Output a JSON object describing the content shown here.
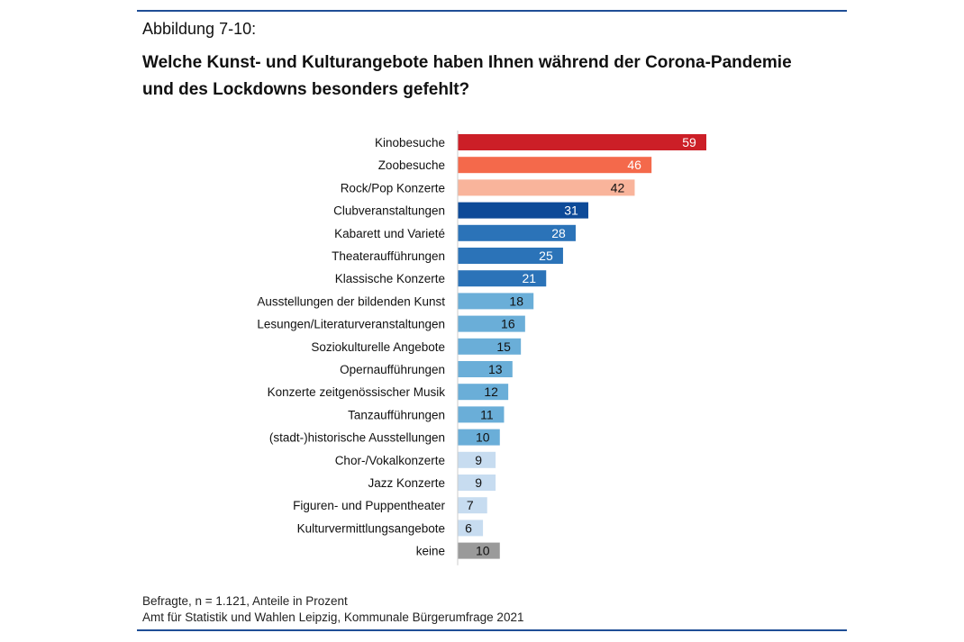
{
  "figure_label": "Abbildung 7-10:",
  "title_line1": "Welche Kunst- und Kulturangebote haben Ihnen während der Corona-Pandemie",
  "title_line2": "und des Lockdowns besonders gefehlt?",
  "footnote": "Befragte, n = 1.121, Anteile in Prozent",
  "source": "Amt für Statistik und Wahlen Leipzig, Kommunale Bürgerumfrage 2021",
  "chart_data": {
    "type": "bar",
    "orientation": "horizontal",
    "unit": "Prozent",
    "xlim": [
      0,
      60
    ],
    "grid": false,
    "categories": [
      "Kinobesuche",
      "Zoobesuche",
      "Rock/Pop Konzerte",
      "Clubveranstaltungen",
      "Kabarett und Varieté",
      "Theateraufführungen",
      "Klassische Konzerte",
      "Ausstellungen der bildenden Kunst",
      "Lesungen/Literaturveranstaltungen",
      "Soziokulturelle Angebote",
      "Opernaufführungen",
      "Konzerte zeitgenössischer Musik",
      "Tanzaufführungen",
      "(stadt-)historische Ausstellungen",
      "Chor-/Vokalkonzerte",
      "Jazz Konzerte",
      "Figuren- und Puppentheater",
      "Kulturvermittlungsangebote",
      "keine"
    ],
    "values": [
      59,
      46,
      42,
      31,
      28,
      25,
      21,
      18,
      16,
      15,
      13,
      12,
      11,
      10,
      9,
      9,
      7,
      6,
      10
    ],
    "colors": [
      "#cc1f27",
      "#f4694b",
      "#f9b49b",
      "#0d4a98",
      "#2b73b8",
      "#2b73b8",
      "#2b73b8",
      "#6aaed8",
      "#6aaed8",
      "#6aaed8",
      "#6aaed8",
      "#6aaed8",
      "#6aaed8",
      "#6aaed8",
      "#c7dcf0",
      "#c7dcf0",
      "#c7dcf0",
      "#c7dcf0",
      "#9a9a9a"
    ],
    "label_colors": [
      "#ffffff",
      "#ffffff",
      "#111111",
      "#ffffff",
      "#ffffff",
      "#ffffff",
      "#ffffff",
      "#111111",
      "#111111",
      "#111111",
      "#111111",
      "#111111",
      "#111111",
      "#111111",
      "#111111",
      "#111111",
      "#111111",
      "#111111",
      "#111111"
    ]
  }
}
